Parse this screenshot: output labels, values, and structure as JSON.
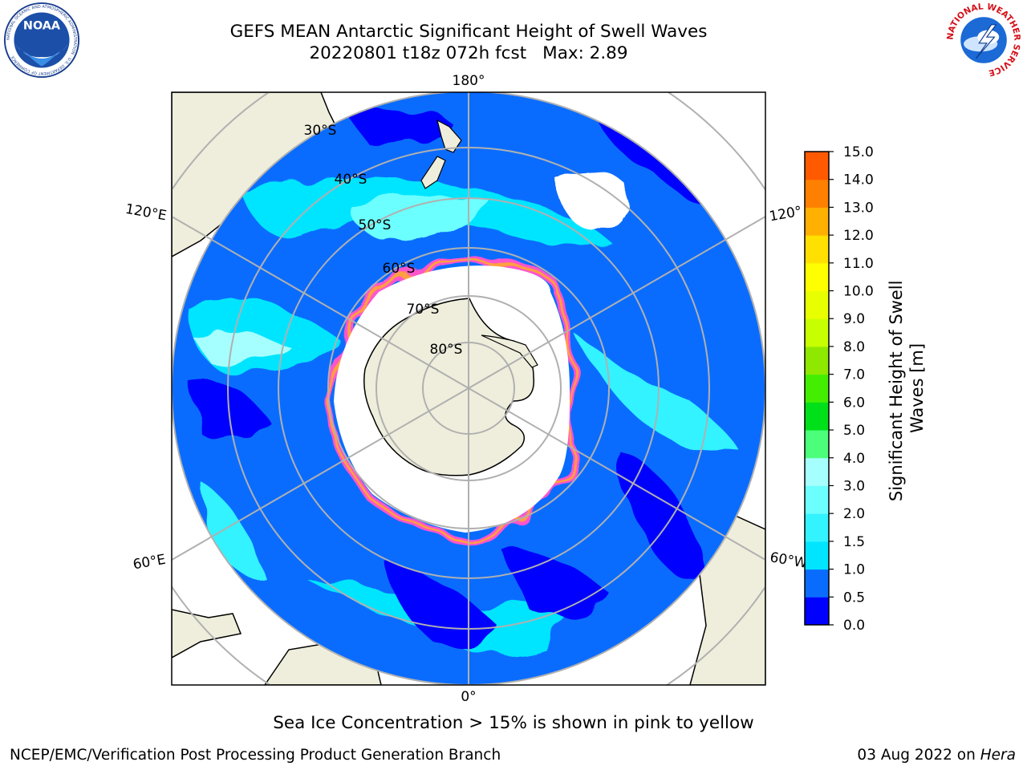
{
  "title": {
    "line1": "GEFS MEAN Antarctic Significant Height of Swell Waves",
    "line2_left": "20220801 t18z 072h fcst",
    "line2_right": "Max: 2.89"
  },
  "logos": {
    "left": {
      "name": "noaa-logo",
      "text": "NOAA",
      "ring_text": "NATIONAL OCEANIC AND ATMOSPHERIC ADMINISTRATION · U.S. DEPARTMENT OF COMMERCE"
    },
    "right": {
      "name": "nws-logo",
      "ring_text": "NATIONAL WEATHER SERVICE"
    }
  },
  "map": {
    "projection": "south-polar-stereographic",
    "longitude_labels": {
      "top": "180°",
      "bottom": "0°",
      "upper_left": "120°E",
      "lower_left": "60°E",
      "upper_right": "120°",
      "lower_right": "60°W"
    },
    "latitude_labels": [
      "30°S",
      "40°S",
      "50°S",
      "60°S",
      "70°S",
      "80°S"
    ],
    "colors": {
      "land": "#efeedc",
      "coast": "#000000",
      "grid": "#b0b0b0",
      "sea_ice": "#ffffff",
      "ice_edge": [
        "#ff55cc",
        "#ffa040",
        "#ffe060"
      ]
    }
  },
  "colorbar": {
    "label": "Significant Height of Swell Waves [m]",
    "label_line1": "Significant Height of Swell",
    "label_line2": "Waves [m]",
    "ticks": [
      "0.0",
      "0.5",
      "1.0",
      "1.5",
      "2.0",
      "3.0",
      "4.0",
      "5.0",
      "6.0",
      "7.0",
      "8.0",
      "9.0",
      "10.0",
      "11.0",
      "12.0",
      "13.0",
      "14.0",
      "15.0"
    ],
    "colors": [
      "#0000ff",
      "#0a6cff",
      "#00e5ff",
      "#33f3ff",
      "#6cffff",
      "#a6ffff",
      "#4cff7a",
      "#00e01a",
      "#44ee00",
      "#8ee800",
      "#c8ff00",
      "#e8ff00",
      "#ffff00",
      "#ffe000",
      "#ffb000",
      "#ff8000",
      "#ff5a00",
      "#ff2000",
      "#ff0000"
    ]
  },
  "caption": "Sea Ice Concentration > 15% is shown in pink to yellow",
  "footer": {
    "left": "NCEP/EMC/Verification Post Processing Product Generation Branch",
    "right_prefix": "03 Aug 2022 on",
    "right_host": "Hera"
  }
}
